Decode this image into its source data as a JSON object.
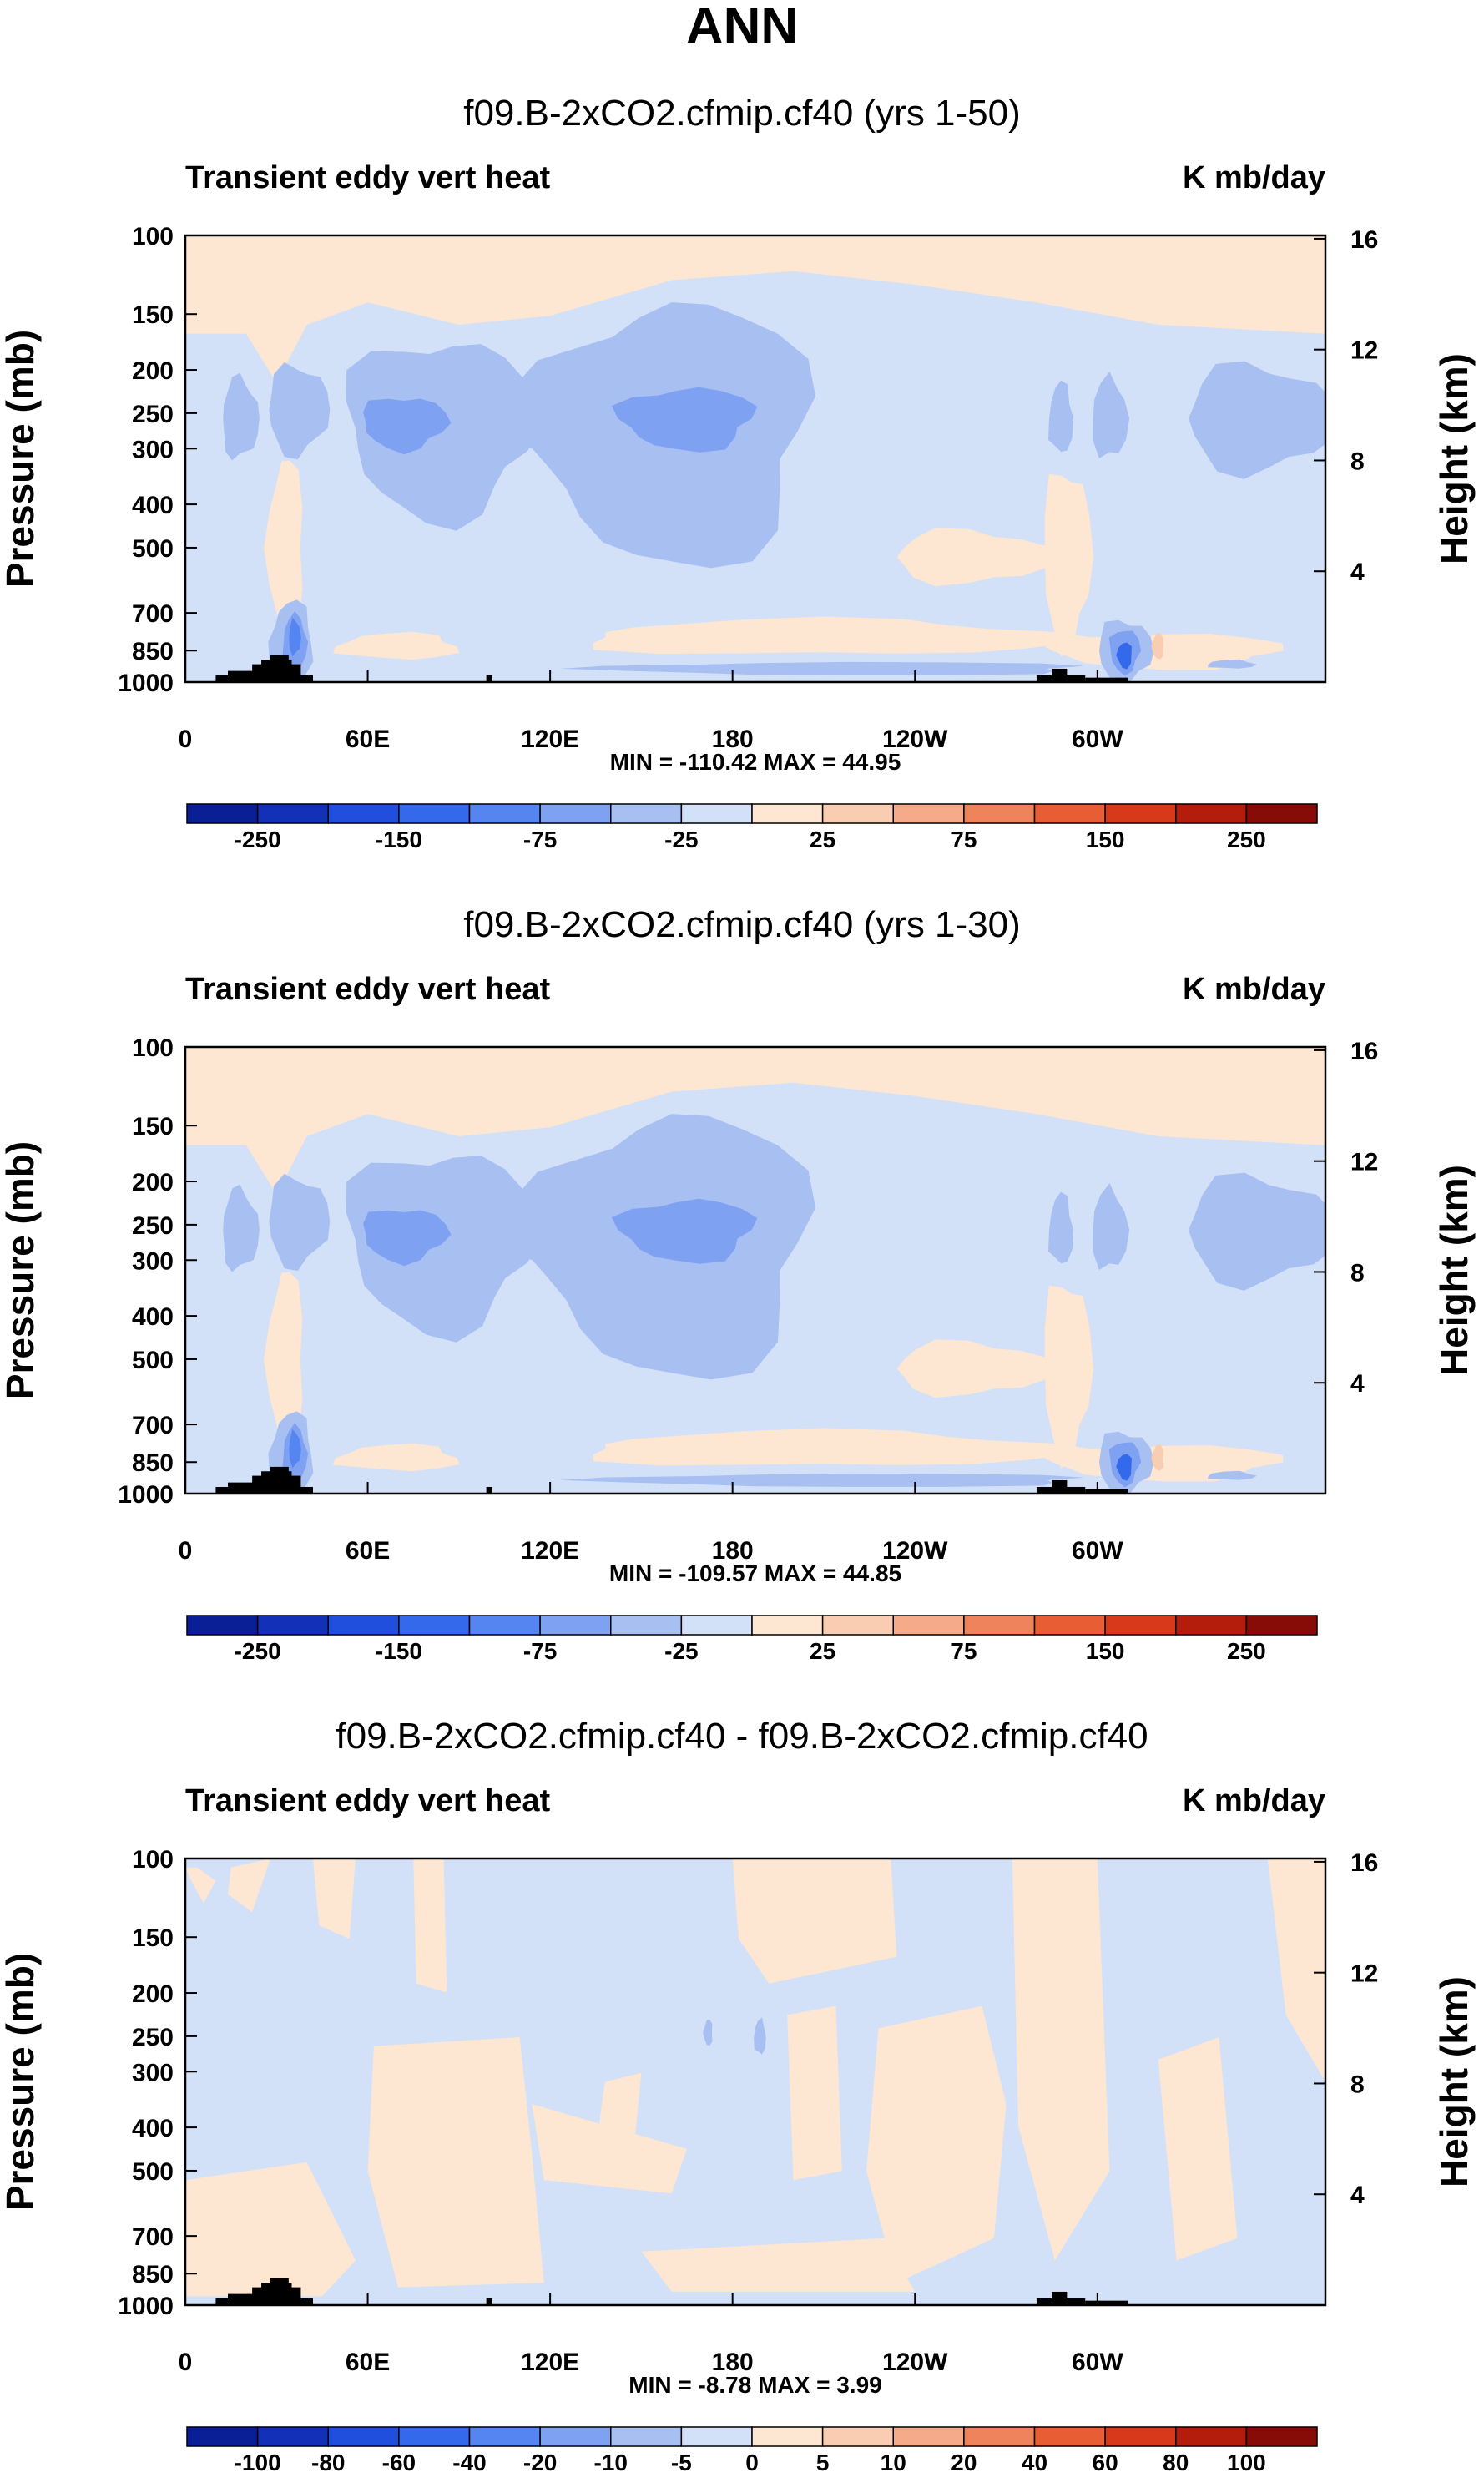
{
  "page_title": "ANN",
  "colors": {
    "cool": [
      "#0a1e96",
      "#1230b8",
      "#1f4fdc",
      "#3569ec",
      "#5585f0",
      "#7ea1f2",
      "#a8bff2",
      "#d2e1f8"
    ],
    "warm": [
      "#fde6d2",
      "#f9cdb2",
      "#f5ab89",
      "#ef845c",
      "#e85d33",
      "#d8391a",
      "#b41c0c",
      "#870b06"
    ],
    "terrain": "#000000",
    "axis": "#000000"
  },
  "chart_data": [
    {
      "type": "heatmap",
      "title": "f09.B-2xCO2.cfmip.cf40 (yrs 1-50)",
      "left_label": "Transient eddy vert heat",
      "right_label": "K mb/day",
      "xlabel": "",
      "ylabel": "Pressure (mb)",
      "ylabel_right": "Height (km)",
      "xticks": [
        "0",
        "60E",
        "120E",
        "180",
        "120W",
        "60W"
      ],
      "xtick_lon": [
        0,
        60,
        120,
        180,
        240,
        300
      ],
      "xlim": [
        0,
        375
      ],
      "yticks": [
        "100",
        "150",
        "200",
        "250",
        "300",
        "400",
        "500",
        "700",
        "850",
        "1000"
      ],
      "ytick_values": [
        100,
        150,
        200,
        250,
        300,
        400,
        500,
        700,
        850,
        1000
      ],
      "ylim": [
        1000,
        100
      ],
      "height_ticks": [
        "16",
        "12",
        "8",
        "4"
      ],
      "height_values": [
        16,
        12,
        8,
        4
      ],
      "stats_text": "MIN = -110.42  MAX =  44.95",
      "min": -110.42,
      "max": 44.95,
      "colorbar_labels": [
        "-250",
        "-150",
        "-75",
        "-25",
        "25",
        "75",
        "150",
        "250"
      ],
      "colorbar_levels": [
        -300,
        -250,
        -200,
        -150,
        -100,
        -75,
        -50,
        -25,
        0,
        25,
        50,
        75,
        100,
        150,
        200,
        250,
        300
      ]
    },
    {
      "type": "heatmap",
      "title": "f09.B-2xCO2.cfmip.cf40 (yrs 1-30)",
      "left_label": "Transient eddy vert heat",
      "right_label": "K mb/day",
      "xlabel": "",
      "ylabel": "Pressure (mb)",
      "ylabel_right": "Height (km)",
      "xticks": [
        "0",
        "60E",
        "120E",
        "180",
        "120W",
        "60W"
      ],
      "xtick_lon": [
        0,
        60,
        120,
        180,
        240,
        300
      ],
      "xlim": [
        0,
        375
      ],
      "yticks": [
        "100",
        "150",
        "200",
        "250",
        "300",
        "400",
        "500",
        "700",
        "850",
        "1000"
      ],
      "ytick_values": [
        100,
        150,
        200,
        250,
        300,
        400,
        500,
        700,
        850,
        1000
      ],
      "ylim": [
        1000,
        100
      ],
      "height_ticks": [
        "16",
        "12",
        "8",
        "4"
      ],
      "height_values": [
        16,
        12,
        8,
        4
      ],
      "stats_text": "MIN = -109.57  MAX =  44.85",
      "min": -109.57,
      "max": 44.85,
      "colorbar_labels": [
        "-250",
        "-150",
        "-75",
        "-25",
        "25",
        "75",
        "150",
        "250"
      ],
      "colorbar_levels": [
        -300,
        -250,
        -200,
        -150,
        -100,
        -75,
        -50,
        -25,
        0,
        25,
        50,
        75,
        100,
        150,
        200,
        250,
        300
      ]
    },
    {
      "type": "heatmap",
      "title": "f09.B-2xCO2.cfmip.cf40 - f09.B-2xCO2.cfmip.cf40",
      "left_label": "Transient eddy vert heat",
      "right_label": "K mb/day",
      "xlabel": "",
      "ylabel": "Pressure (mb)",
      "ylabel_right": "Height (km)",
      "xticks": [
        "0",
        "60E",
        "120E",
        "180",
        "120W",
        "60W"
      ],
      "xtick_lon": [
        0,
        60,
        120,
        180,
        240,
        300
      ],
      "xlim": [
        0,
        375
      ],
      "yticks": [
        "100",
        "150",
        "200",
        "250",
        "300",
        "400",
        "500",
        "700",
        "850",
        "1000"
      ],
      "ytick_values": [
        100,
        150,
        200,
        250,
        300,
        400,
        500,
        700,
        850,
        1000
      ],
      "ylim": [
        1000,
        100
      ],
      "height_ticks": [
        "16",
        "12",
        "8",
        "4"
      ],
      "height_values": [
        16,
        12,
        8,
        4
      ],
      "stats_text": "MIN =  -8.78  MAX =   3.99",
      "min": -8.78,
      "max": 3.99,
      "colorbar_labels": [
        "-100",
        "-80",
        "-60",
        "-40",
        "-20",
        "-10",
        "-5",
        "0",
        "5",
        "10",
        "20",
        "40",
        "60",
        "80",
        "100"
      ],
      "colorbar_levels": [
        -100,
        -80,
        -60,
        -40,
        -20,
        -10,
        -5,
        0,
        5,
        10,
        20,
        40,
        60,
        80,
        100
      ]
    }
  ]
}
